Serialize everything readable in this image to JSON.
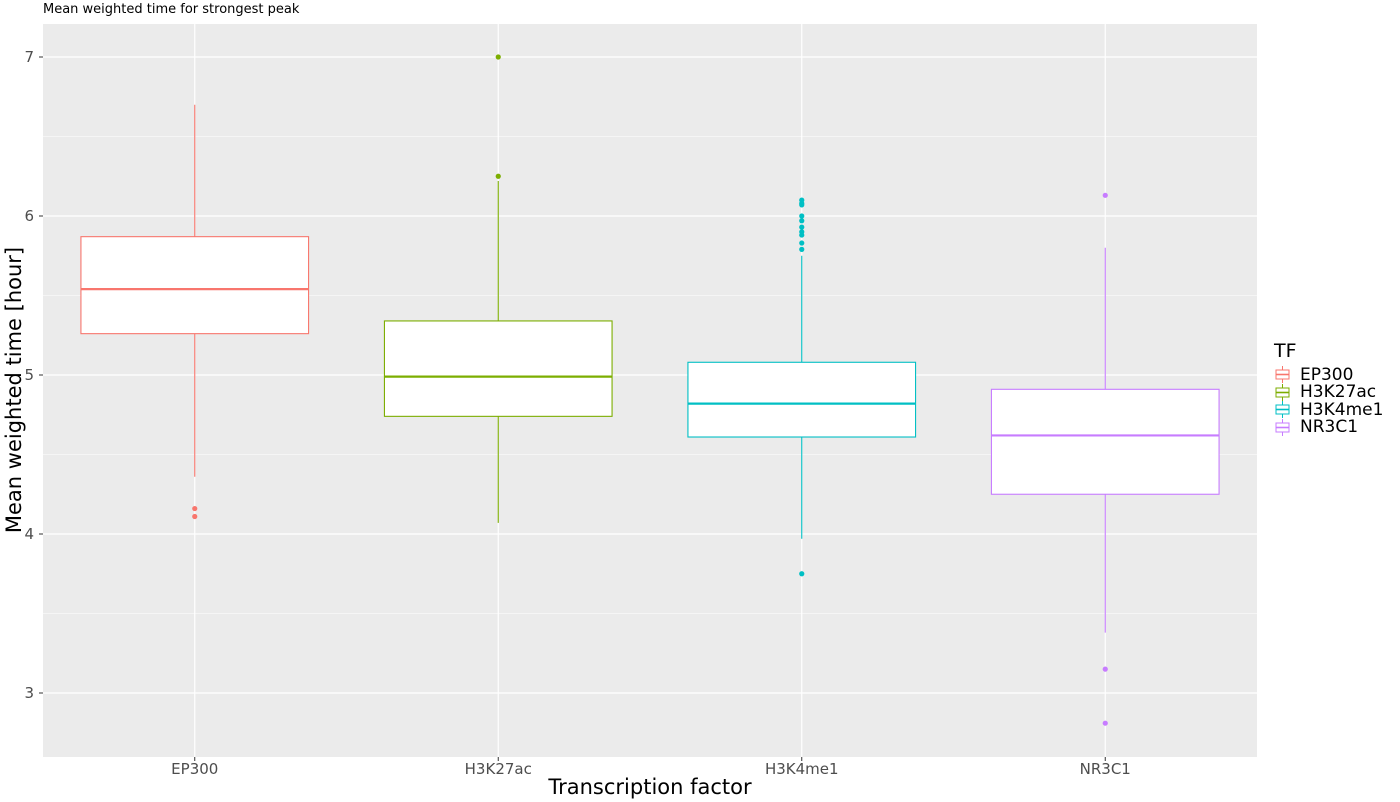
{
  "chart_data": {
    "type": "boxplot",
    "title": "Mean weighted time for strongest peak",
    "xlabel": "Transcription factor",
    "ylabel": "Mean weighted time [hour]",
    "ylim": [
      2.6,
      7.2
    ],
    "y_ticks": [
      3,
      4,
      5,
      6,
      7
    ],
    "grid": true,
    "legend": {
      "title": "TF",
      "placement": "right"
    },
    "categories": [
      "EP300",
      "H3K27ac",
      "H3K4me1",
      "NR3C1"
    ],
    "series": [
      {
        "name": "EP300",
        "color": "#F8766D",
        "whisker_low": 4.36,
        "q1": 5.26,
        "median": 5.54,
        "q3": 5.87,
        "whisker_high": 6.7,
        "outliers": [
          4.16,
          4.11
        ]
      },
      {
        "name": "H3K27ac",
        "color": "#7CAE00",
        "whisker_low": 4.07,
        "q1": 4.74,
        "median": 4.99,
        "q3": 5.34,
        "whisker_high": 6.22,
        "outliers": [
          7.0,
          6.25
        ]
      },
      {
        "name": "H3K4me1",
        "color": "#00BFC4",
        "whisker_low": 3.97,
        "q1": 4.61,
        "median": 4.82,
        "q3": 5.08,
        "whisker_high": 5.75,
        "outliers": [
          6.1,
          6.08,
          6.07,
          6.0,
          5.97,
          5.93,
          5.9,
          5.88,
          5.83,
          5.79,
          3.75
        ]
      },
      {
        "name": "NR3C1",
        "color": "#C77CFF",
        "whisker_low": 3.38,
        "q1": 4.25,
        "median": 4.62,
        "q3": 4.91,
        "whisker_high": 5.8,
        "outliers": [
          6.13,
          3.15,
          2.81
        ]
      }
    ]
  }
}
